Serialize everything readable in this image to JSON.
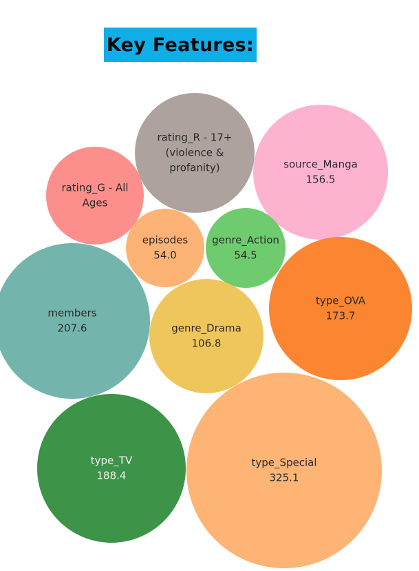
{
  "title": "Key Features:",
  "colors": {
    "title_background": "#10aee8"
  },
  "chart_data": {
    "type": "bubble",
    "bubbles": [
      {
        "label_lines": [
          "rating_R - 17+",
          "(violence &",
          "profanity)"
        ],
        "value": null,
        "color": "#ada29e",
        "text_color": "#2b2b2b"
      },
      {
        "label_lines": [
          "source_Manga"
        ],
        "value": "156.5",
        "color": "#fdb3cf",
        "text_color": "#2b2b2b"
      },
      {
        "label_lines": [
          "rating_G - All",
          "Ages"
        ],
        "value": null,
        "color": "#fc8f8c",
        "text_color": "#2b2b2b"
      },
      {
        "label_lines": [
          "episodes"
        ],
        "value": "54.0",
        "color": "#fdb375",
        "text_color": "#2b2b2b"
      },
      {
        "label_lines": [
          "genre_Action"
        ],
        "value": "54.5",
        "color": "#6ecc6e",
        "text_color": "#2b2b2b"
      },
      {
        "label_lines": [
          "members"
        ],
        "value": "207.6",
        "color": "#73b5ad",
        "text_color": "#2b2b2b"
      },
      {
        "label_lines": [
          "type_OVA"
        ],
        "value": "173.7",
        "color": "#fb8530",
        "text_color": "#2b2b2b"
      },
      {
        "label_lines": [
          "genre_Drama"
        ],
        "value": "106.8",
        "color": "#efc65c",
        "text_color": "#2b2b2b"
      },
      {
        "label_lines": [
          "type_TV"
        ],
        "value": "188.4",
        "color": "#3d9348",
        "text_color": "#f2f2f2"
      },
      {
        "label_lines": [
          "type_Special"
        ],
        "value": "325.1",
        "color": "#fdb475",
        "text_color": "#2b2b2b"
      }
    ]
  }
}
